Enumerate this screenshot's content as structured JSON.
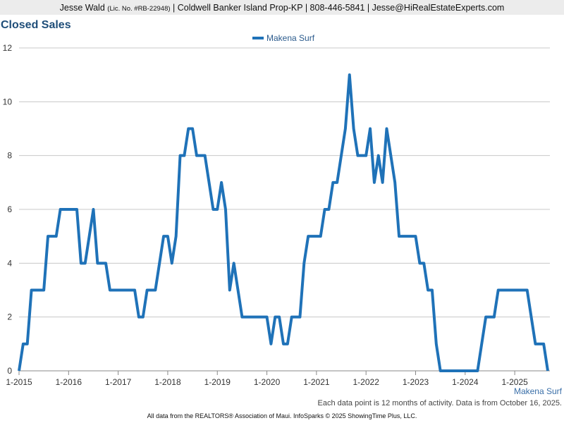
{
  "header": {
    "name": "Jesse Wald",
    "license": "(Lic. No. #RB-22948)",
    "details": "| Coldwell Banker Island Prop-KP | 808-446-5841 | Jesse@HiRealEstateExperts.com"
  },
  "chart_data": {
    "type": "line",
    "title": "Closed Sales",
    "categories": [
      "1-2015",
      null,
      null,
      null,
      null,
      null,
      null,
      null,
      null,
      null,
      null,
      null,
      "1-2016",
      null,
      null,
      null,
      null,
      null,
      null,
      null,
      null,
      null,
      null,
      null,
      "1-2017",
      null,
      null,
      null,
      null,
      null,
      null,
      null,
      null,
      null,
      null,
      null,
      "1-2018",
      null,
      null,
      null,
      null,
      null,
      null,
      null,
      null,
      null,
      null,
      null,
      "1-2019",
      null,
      null,
      null,
      null,
      null,
      null,
      null,
      null,
      null,
      null,
      null,
      "1-2020",
      null,
      null,
      null,
      null,
      null,
      null,
      null,
      null,
      null,
      null,
      null,
      "1-2021",
      null,
      null,
      null,
      null,
      null,
      null,
      null,
      null,
      null,
      null,
      null,
      "1-2022",
      null,
      null,
      null,
      null,
      null,
      null,
      null,
      null,
      null,
      null,
      null,
      "1-2023",
      null,
      null,
      null,
      null,
      null,
      null,
      null,
      null,
      null,
      null,
      null,
      "1-2024",
      null,
      null,
      null,
      null,
      null,
      null,
      null,
      null,
      null,
      null,
      null,
      "1-2025",
      null,
      null,
      null,
      null,
      null,
      null,
      null,
      null
    ],
    "series": [
      {
        "name": "Makena Surf",
        "color": "#1f72b8",
        "values": [
          0,
          1,
          1,
          3,
          3,
          3,
          3,
          5,
          5,
          5,
          6,
          6,
          6,
          6,
          6,
          4,
          4,
          5,
          6,
          4,
          4,
          4,
          3,
          3,
          3,
          3,
          3,
          3,
          3,
          2,
          2,
          3,
          3,
          3,
          4,
          5,
          5,
          4,
          5,
          8,
          8,
          9,
          9,
          8,
          8,
          8,
          7,
          6,
          6,
          7,
          6,
          3,
          4,
          3,
          2,
          2,
          2,
          2,
          2,
          2,
          2,
          1,
          2,
          2,
          1,
          1,
          2,
          2,
          2,
          4,
          5,
          5,
          5,
          5,
          6,
          6,
          7,
          7,
          8,
          9,
          11,
          9,
          8,
          8,
          8,
          9,
          7,
          8,
          7,
          9,
          8,
          7,
          5,
          5,
          5,
          5,
          5,
          4,
          4,
          3,
          3,
          1,
          0,
          0,
          0,
          0,
          0,
          0,
          0,
          0,
          0,
          0,
          1,
          2,
          2,
          2,
          3,
          3,
          3,
          3,
          3,
          3,
          3,
          3,
          2,
          1,
          1,
          1,
          0
        ]
      }
    ],
    "ylim": [
      0,
      12
    ],
    "yticks": [
      0,
      2,
      4,
      6,
      8,
      10,
      12
    ],
    "grid": true,
    "xlabel": "Makena Surf",
    "note": "Each data point is 12 months of activity. Data is from October 16, 2025."
  },
  "footer": "All data from the REALTORS® Association of Maui. InfoSparks © 2025 ShowingTime Plus, LLC."
}
